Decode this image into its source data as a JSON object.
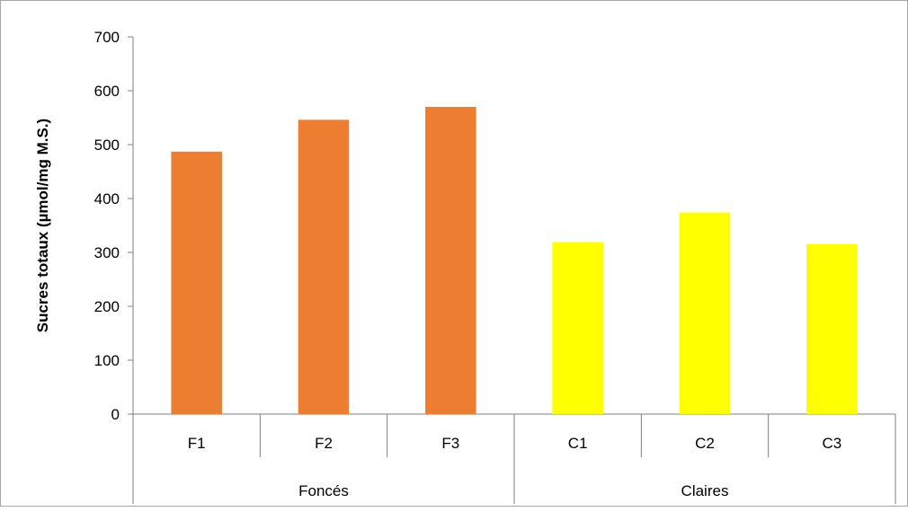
{
  "chart_data": {
    "type": "bar",
    "ylabel": "Sucres totaux (µmol/mg M.S.)",
    "ylim": [
      0,
      700
    ],
    "yticks": [
      0,
      100,
      200,
      300,
      400,
      500,
      600,
      700
    ],
    "grid": false,
    "legend": "none",
    "groups": [
      {
        "label": "Foncés",
        "categories": [
          "F1",
          "F2",
          "F3"
        ],
        "values": [
          487,
          546,
          570
        ],
        "color": "#ED7D31"
      },
      {
        "label": "Claires",
        "categories": [
          "C1",
          "C2",
          "C3"
        ],
        "values": [
          319,
          374,
          315
        ],
        "color": "#FFFF00"
      }
    ]
  }
}
